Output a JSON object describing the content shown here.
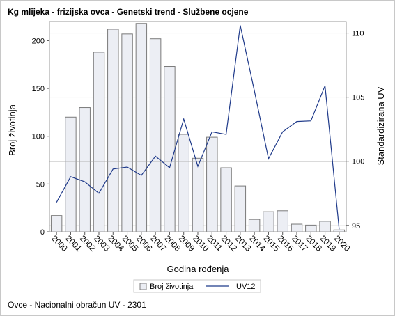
{
  "title": "Kg mlijeka - frizijska ovca - Genetski trend - Službene ocjene",
  "footnote": "Ovce - Nacionalni obračun UV - 2301",
  "chart_data": {
    "type": "bar+line",
    "categories": [
      "2000",
      "2001",
      "2002",
      "2003",
      "2004",
      "2005",
      "2006",
      "2007",
      "2008",
      "2009",
      "2010",
      "2011",
      "2012",
      "2013",
      "2014",
      "2015",
      "2016",
      "2017",
      "2018",
      "2019",
      "2020"
    ],
    "xlabel": "Godina rođenja",
    "ylabel_left": "Broj životinja",
    "ylabel_right": "Standardizirana UV",
    "ylim_left": [
      0,
      220
    ],
    "ylim_right": [
      94.5,
      110.9
    ],
    "yticks_left": [
      0,
      50,
      100,
      150,
      200
    ],
    "yticks_right": [
      95,
      100,
      105,
      110
    ],
    "reference_line_right": 100,
    "series": [
      {
        "name": "Broj životinja",
        "type": "bar",
        "axis": "left",
        "color": "#eceef4",
        "values": [
          17,
          120,
          130,
          188,
          212,
          207,
          218,
          202,
          173,
          102,
          77,
          99,
          67,
          48,
          13,
          21,
          22,
          8,
          7,
          11,
          2
        ]
      },
      {
        "name": "UV12",
        "type": "line",
        "axis": "right",
        "color": "#1f3a8a",
        "values": [
          96.8,
          98.8,
          98.4,
          97.5,
          99.4,
          99.55,
          98.9,
          100.4,
          99.5,
          103.3,
          99.6,
          102.3,
          102.1,
          110.6,
          105.5,
          100.2,
          102.3,
          103.1,
          103.15,
          105.9,
          94.7
        ]
      }
    ],
    "legend": {
      "position": "bottom",
      "labels": [
        "Broj životinja",
        "UV12"
      ]
    },
    "grid": true
  }
}
